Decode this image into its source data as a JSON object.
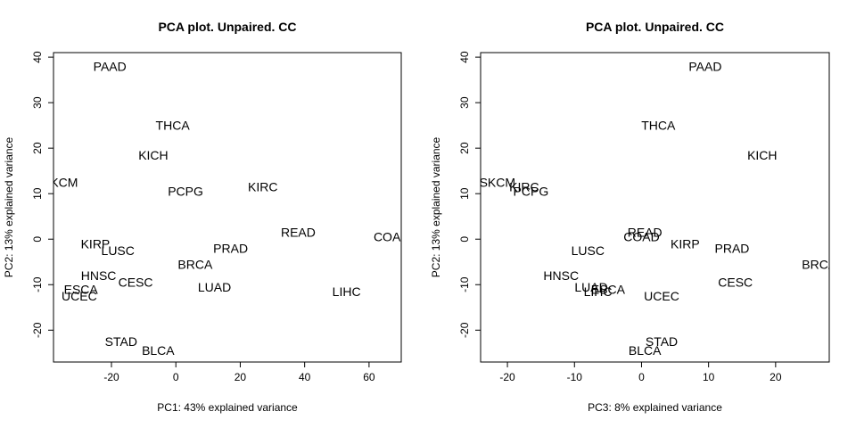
{
  "chart_data": [
    {
      "type": "scatter",
      "title": "PCA plot. Unpaired. CC",
      "xlabel": "PC1: 43% explained variance",
      "ylabel": "PC2: 13% explained variance",
      "xlim": [
        -38,
        70
      ],
      "ylim": [
        -27,
        41
      ],
      "xticks": [
        -20,
        0,
        20,
        40,
        60
      ],
      "yticks": [
        -20,
        -10,
        0,
        10,
        20,
        30,
        40
      ],
      "points": [
        {
          "label": "PAAD",
          "x": -20.5,
          "y": 38
        },
        {
          "label": "THCA",
          "x": -1,
          "y": 25
        },
        {
          "label": "KICH",
          "x": -7,
          "y": 18.5
        },
        {
          "label": "SKCM",
          "x": -36,
          "y": 12.5
        },
        {
          "label": "PCPG",
          "x": 3,
          "y": 10.5
        },
        {
          "label": "KIRC",
          "x": 27,
          "y": 11.5
        },
        {
          "label": "READ",
          "x": 38,
          "y": 1.5
        },
        {
          "label": "COAD",
          "x": 67,
          "y": 0.5
        },
        {
          "label": "KIRP",
          "x": -25,
          "y": -1
        },
        {
          "label": "LUSC",
          "x": -18,
          "y": -2.5
        },
        {
          "label": "PRAD",
          "x": 17,
          "y": -2
        },
        {
          "label": "BRCA",
          "x": 6,
          "y": -5.5
        },
        {
          "label": "HNSC",
          "x": -24,
          "y": -8
        },
        {
          "label": "CESC",
          "x": -12.5,
          "y": -9.5
        },
        {
          "label": "LUAD",
          "x": 12,
          "y": -10.5
        },
        {
          "label": "LIHC",
          "x": 53,
          "y": -11.5
        },
        {
          "label": "ESCA",
          "x": -29.5,
          "y": -11
        },
        {
          "label": "UCEC",
          "x": -30,
          "y": -12.5
        },
        {
          "label": "STAD",
          "x": -17,
          "y": -22.5
        },
        {
          "label": "BLCA",
          "x": -5.5,
          "y": -24.5
        }
      ]
    },
    {
      "type": "scatter",
      "title": "PCA plot. Unpaired. CC",
      "xlabel": "PC3: 8% explained variance",
      "ylabel": "PC2: 13% explained variance",
      "xlim": [
        -24,
        28
      ],
      "ylim": [
        -27,
        41
      ],
      "xticks": [
        -20,
        -10,
        0,
        10,
        20
      ],
      "yticks": [
        -20,
        -10,
        0,
        10,
        20,
        30,
        40
      ],
      "points": [
        {
          "label": "PAAD",
          "x": 9.5,
          "y": 38
        },
        {
          "label": "THCA",
          "x": 2.5,
          "y": 25
        },
        {
          "label": "KICH",
          "x": 18,
          "y": 18.5
        },
        {
          "label": "SKCM",
          "x": -21.5,
          "y": 12.5
        },
        {
          "label": "KIRC",
          "x": -17.5,
          "y": 11.5
        },
        {
          "label": "PCPG",
          "x": -16.5,
          "y": 10.5
        },
        {
          "label": "READ",
          "x": 0.5,
          "y": 1.5
        },
        {
          "label": "COAD",
          "x": 0,
          "y": 0.5
        },
        {
          "label": "KIRP",
          "x": 6.5,
          "y": -1
        },
        {
          "label": "LUSC",
          "x": -8,
          "y": -2.5
        },
        {
          "label": "PRAD",
          "x": 13.5,
          "y": -2
        },
        {
          "label": "BRCA",
          "x": 26.5,
          "y": -5.5
        },
        {
          "label": "HNSC",
          "x": -12,
          "y": -8
        },
        {
          "label": "CESC",
          "x": 14,
          "y": -9.5
        },
        {
          "label": "LUAD",
          "x": -7.5,
          "y": -10.5
        },
        {
          "label": "ESCA",
          "x": -5,
          "y": -11
        },
        {
          "label": "LIHC",
          "x": -6.5,
          "y": -11.5
        },
        {
          "label": "UCEC",
          "x": 3,
          "y": -12.5
        },
        {
          "label": "STAD",
          "x": 3,
          "y": -22.5
        },
        {
          "label": "BLCA",
          "x": 0.5,
          "y": -24.5
        }
      ]
    }
  ]
}
